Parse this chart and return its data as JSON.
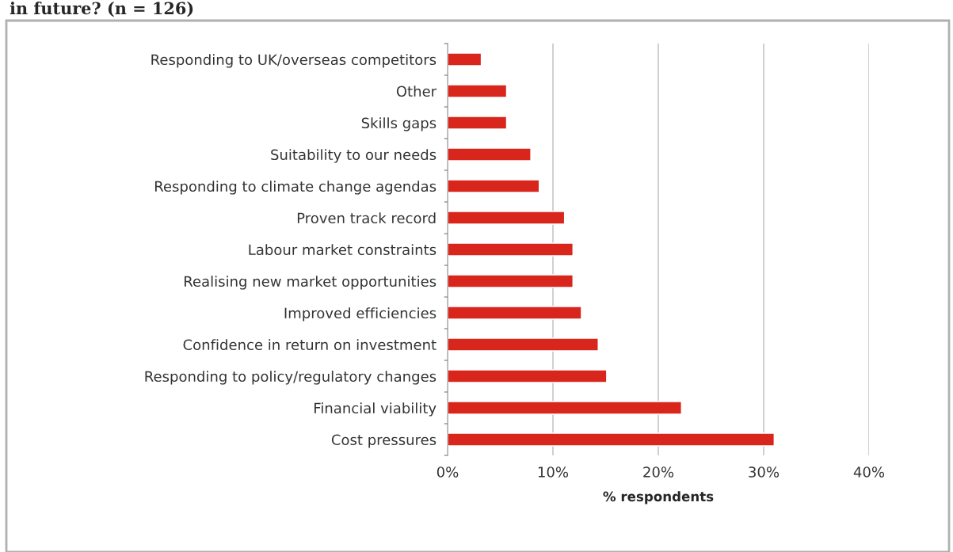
{
  "chart_data": {
    "type": "bar",
    "orientation": "horizontal",
    "title": "in future? (n = 126)",
    "xlabel": "% respondents",
    "categories": [
      "Responding to UK/overseas competitors",
      "Other",
      "Skills gaps",
      "Suitability to our needs",
      "Responding to climate change agendas",
      "Proven track record",
      "Labour market constraints",
      "Realising new market opportunities",
      "Improved efficiencies",
      "Confidence in return on investment",
      "Responding to policy/regulatory changes",
      "Financial viability",
      "Cost pressures"
    ],
    "values": [
      3.2,
      5.6,
      5.6,
      7.9,
      8.7,
      11.1,
      11.9,
      11.9,
      12.7,
      14.3,
      15.1,
      22.2,
      31.0
    ],
    "color": "#d9261c",
    "xlim": [
      0,
      40
    ],
    "xticks": [
      {
        "value": 0,
        "label": "0%"
      },
      {
        "value": 10,
        "label": "10%"
      },
      {
        "value": 20,
        "label": "20%"
      },
      {
        "value": 30,
        "label": "30%"
      },
      {
        "value": 40,
        "label": "40%"
      }
    ],
    "grid": "x"
  }
}
